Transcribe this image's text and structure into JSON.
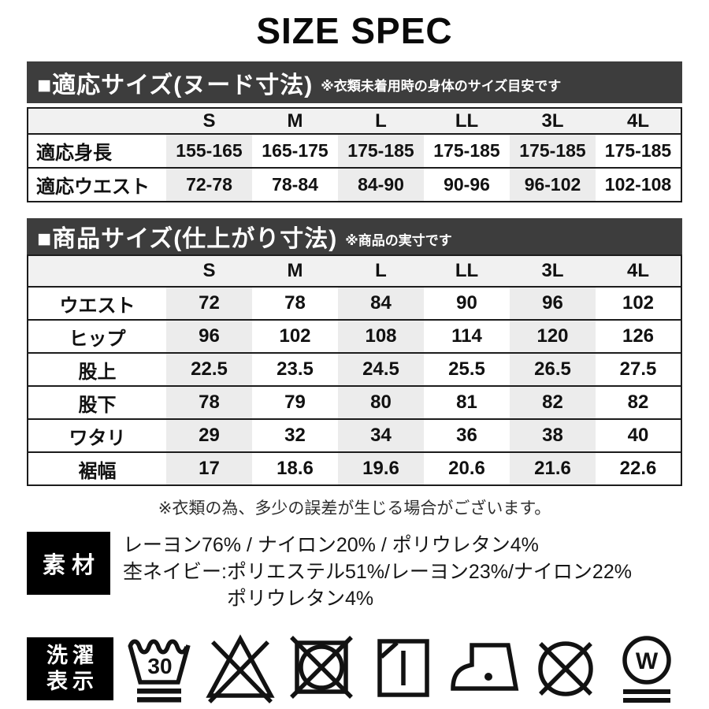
{
  "title": "SIZE SPEC",
  "section1": {
    "heading": "■適応サイズ(ヌード寸法)",
    "note": "※衣類未着用時の身体のサイズ目安です",
    "table": {
      "columns": [
        "S",
        "M",
        "L",
        "LL",
        "3L",
        "4L"
      ],
      "rows": [
        {
          "label": "適応身長",
          "values": [
            "155-165",
            "165-175",
            "175-185",
            "175-185",
            "175-185",
            "175-185"
          ]
        },
        {
          "label": "適応ウエスト",
          "values": [
            "72-78",
            "78-84",
            "84-90",
            "90-96",
            "96-102",
            "102-108"
          ]
        }
      ]
    }
  },
  "section2": {
    "heading": "■商品サイズ(仕上がり寸法)",
    "note": "※商品の実寸です",
    "table": {
      "columns": [
        "S",
        "M",
        "L",
        "LL",
        "3L",
        "4L"
      ],
      "rows": [
        {
          "label": "ウエスト",
          "values": [
            "72",
            "78",
            "84",
            "90",
            "96",
            "102"
          ]
        },
        {
          "label": "ヒップ",
          "values": [
            "96",
            "102",
            "108",
            "114",
            "120",
            "126"
          ]
        },
        {
          "label": "股上",
          "values": [
            "22.5",
            "23.5",
            "24.5",
            "25.5",
            "26.5",
            "27.5"
          ]
        },
        {
          "label": "股下",
          "values": [
            "78",
            "79",
            "80",
            "81",
            "82",
            "82"
          ]
        },
        {
          "label": "ワタリ",
          "values": [
            "29",
            "32",
            "34",
            "36",
            "38",
            "40"
          ]
        },
        {
          "label": "裾幅",
          "values": [
            "17",
            "18.6",
            "19.6",
            "20.6",
            "21.6",
            "22.6"
          ]
        }
      ]
    }
  },
  "disclaimer": "※衣類の為、多少の誤差が生じる場合がございます。",
  "material": {
    "label": "素材",
    "lines": [
      "レーヨン76% / ナイロン20% / ポリウレタン4%",
      "杢ネイビー:ポリエステル51%/レーヨン23%/ナイロン22%",
      "ポリウレタン4%"
    ]
  },
  "care": {
    "label_line1": "洗濯",
    "label_line2": "表示",
    "wash_temp": "30",
    "wet_clean_letter": "W",
    "icon_names": [
      "wash-30-very-gentle-icon",
      "do-not-bleach-icon",
      "do-not-tumble-dry-icon",
      "line-dry-in-shade-icon",
      "iron-low-heat-icon",
      "do-not-dry-clean-icon",
      "wet-clean-very-gentle-icon"
    ]
  },
  "colors": {
    "bar_background": "#3d3d3d",
    "header_row_background": "#f1f1f1",
    "stripe_column_background": "#ececec",
    "box_black": "#000000"
  }
}
